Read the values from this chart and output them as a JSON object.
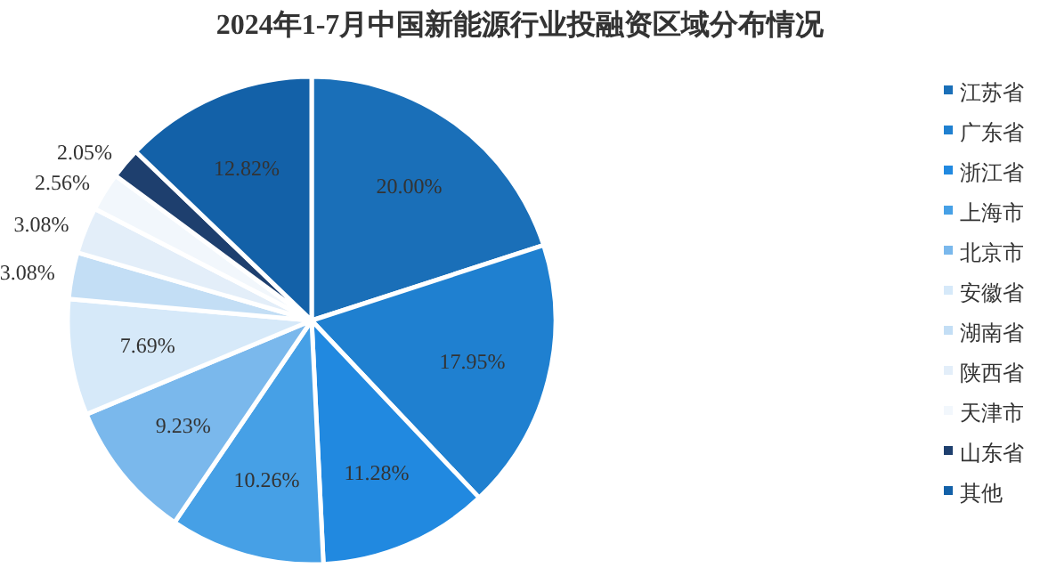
{
  "chart_data": {
    "type": "pie",
    "title": "2024年1-7月中国新能源行业投融资区域分布情况",
    "categories": [
      "江苏省",
      "广东省",
      "浙江省",
      "上海市",
      "北京市",
      "安徽省",
      "湖南省",
      "陕西省",
      "天津市",
      "山东省",
      "其他"
    ],
    "values": [
      20.0,
      17.95,
      11.28,
      10.26,
      9.23,
      7.69,
      3.08,
      3.08,
      2.56,
      2.05,
      12.82
    ],
    "value_labels": [
      "20.00%",
      "17.95%",
      "11.28%",
      "10.26%",
      "9.23%",
      "7.69%",
      "3.08%",
      "3.08%",
      "2.56%",
      "2.05%",
      "12.82%"
    ],
    "colors": [
      "#1a6fb8",
      "#1f80d0",
      "#2189e0",
      "#46a0e6",
      "#7ab8ec",
      "#d6e9f9",
      "#c3def5",
      "#e3eef9",
      "#f2f7fc",
      "#1e3f6e",
      "#1361a8"
    ],
    "legend": "right"
  }
}
